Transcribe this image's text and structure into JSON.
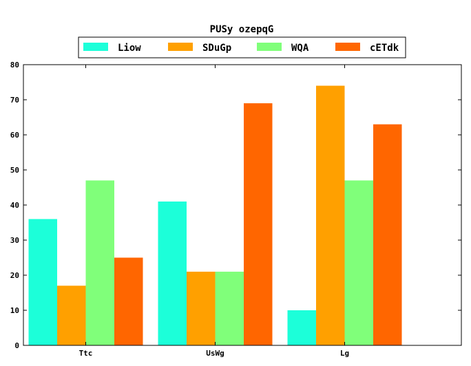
{
  "chart_data": {
    "type": "bar",
    "title": "PUSy ozepqG",
    "xlabel": "",
    "ylabel": "",
    "categories": [
      "Ttc",
      "UsWg",
      "Lg"
    ],
    "series": [
      {
        "name": "Liow",
        "values": [
          36,
          41,
          10
        ],
        "color": "#1cffd9"
      },
      {
        "name": "SDuGp",
        "values": [
          17,
          21,
          74
        ],
        "color": "#ffa000"
      },
      {
        "name": "WQA",
        "values": [
          47,
          21,
          47
        ],
        "color": "#80ff7a"
      },
      {
        "name": "cETdk",
        "values": [
          25,
          69,
          63
        ],
        "color": "#ff6600"
      }
    ],
    "ylim": [
      0,
      80
    ],
    "yticks": [
      0,
      10,
      20,
      30,
      40,
      50,
      60,
      70,
      80
    ],
    "grid": false,
    "legend_position": "top-center"
  }
}
